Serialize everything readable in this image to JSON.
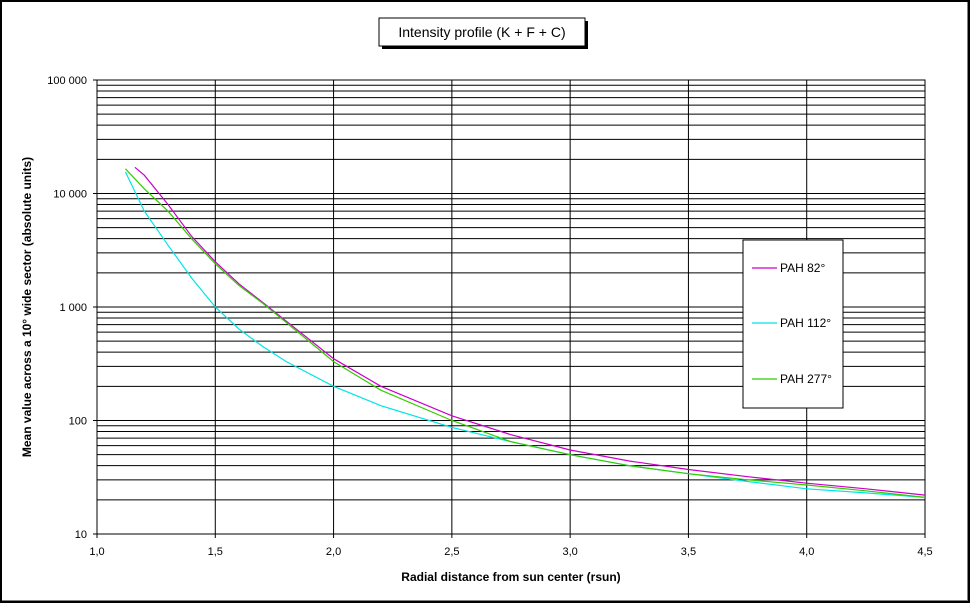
{
  "chart_data": {
    "type": "line",
    "title": "Intensity profile (K + F + C)",
    "xlabel": "Radial distance from sun center (rsun)",
    "ylabel": "Mean value across a 10° wide sector (absolute units)",
    "xlim": [
      1.0,
      4.5
    ],
    "ylim": [
      10,
      100000
    ],
    "yscale": "log",
    "x_ticks": [
      "1,0",
      "1,5",
      "2,0",
      "2,5",
      "3,0",
      "3,5",
      "4,0",
      "4,5"
    ],
    "x_tick_values": [
      1.0,
      1.5,
      2.0,
      2.5,
      3.0,
      3.5,
      4.0,
      4.5
    ],
    "y_ticks": [
      "10",
      "100",
      "1 000",
      "10 000",
      "100 000"
    ],
    "y_tick_values": [
      10,
      100,
      1000,
      10000,
      100000
    ],
    "grid": true,
    "legend_position": "right",
    "series": [
      {
        "name": "PAH 82°",
        "color": "#cc00cc",
        "x": [
          1.16,
          1.2,
          1.3,
          1.4,
          1.5,
          1.6,
          1.7,
          1.8,
          2.0,
          2.2,
          2.5,
          2.75,
          3.0,
          3.25,
          3.5,
          3.75,
          4.0,
          4.25,
          4.5
        ],
        "y": [
          17000,
          14500,
          8000,
          4200,
          2500,
          1600,
          1100,
          750,
          350,
          200,
          110,
          75,
          55,
          44,
          37,
          32,
          28,
          25,
          22
        ]
      },
      {
        "name": "PAH 112°",
        "color": "#00e5e5",
        "x": [
          1.12,
          1.2,
          1.3,
          1.4,
          1.5,
          1.6,
          1.7,
          1.8,
          2.0,
          2.2,
          2.5,
          2.75,
          3.0,
          3.25,
          3.5,
          3.75,
          4.0,
          4.25,
          4.5
        ],
        "y": [
          15500,
          7000,
          3500,
          1800,
          1000,
          640,
          450,
          330,
          200,
          135,
          87,
          65,
          50,
          40,
          34,
          29,
          25,
          23,
          21
        ]
      },
      {
        "name": "PAH 277°",
        "color": "#33cc00",
        "x": [
          1.12,
          1.2,
          1.3,
          1.4,
          1.5,
          1.6,
          1.7,
          1.8,
          2.0,
          2.2,
          2.5,
          2.75,
          3.0,
          3.25,
          3.5,
          3.75,
          4.0,
          4.25,
          4.5
        ],
        "y": [
          16500,
          11000,
          7000,
          4000,
          2400,
          1550,
          1080,
          730,
          330,
          185,
          100,
          65,
          50,
          40,
          34,
          30,
          27,
          24,
          21
        ]
      }
    ]
  }
}
